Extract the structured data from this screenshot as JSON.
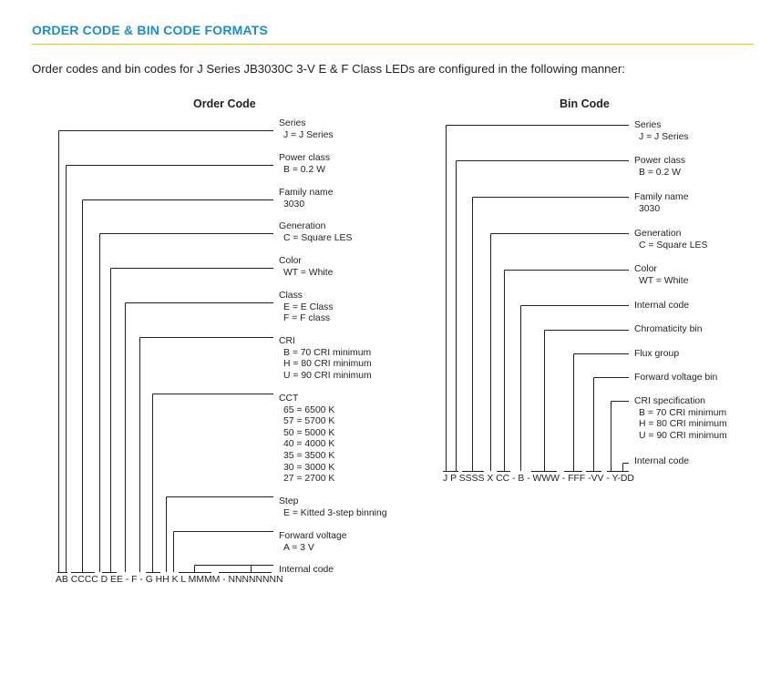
{
  "title": "ORDER CODE & BIN CODE FORMATS",
  "intro": "Order codes and bin codes for J Series JB3030C 3-V E & F Class LEDs are configured in the following manner:",
  "order": {
    "heading": "Order Code",
    "code": "AB CCCC D EE - F - G HH K L MMMM - NNNNNNNN",
    "labels": [
      {
        "main": "Series",
        "subs": [
          "J = J Series"
        ]
      },
      {
        "main": "Power class",
        "subs": [
          "B = 0.2 W"
        ]
      },
      {
        "main": "Family name",
        "subs": [
          "3030"
        ]
      },
      {
        "main": "Generation",
        "subs": [
          "C = Square LES"
        ]
      },
      {
        "main": "Color",
        "subs": [
          "WT = White"
        ]
      },
      {
        "main": "Class",
        "subs": [
          "E = E Class",
          "F = F class"
        ]
      },
      {
        "main": "CRI",
        "subs": [
          "B = 70 CRI minimum",
          "H = 80 CRI minimum",
          "U = 90 CRI minimum"
        ]
      },
      {
        "main": "CCT",
        "subs": [
          "65 = 6500 K",
          "57 = 5700 K",
          "50 = 5000 K",
          "40 = 4000 K",
          "35 = 3500 K",
          "30 = 3000 K",
          "27 = 2700 K"
        ]
      },
      {
        "main": "Step",
        "subs": [
          "E = Kitted 3-step binning"
        ]
      },
      {
        "main": "Forward voltage",
        "subs": [
          "A = 3 V"
        ]
      },
      {
        "main": "Internal code",
        "subs": []
      }
    ]
  },
  "bin": {
    "heading": "Bin Code",
    "code": "J P SSSS X CC - B - WWW - FFF -VV - Y-DD",
    "labels": [
      {
        "main": "Series",
        "subs": [
          "J = J Series"
        ]
      },
      {
        "main": "Power class",
        "subs": [
          "B = 0.2 W"
        ]
      },
      {
        "main": "Family name",
        "subs": [
          "3030"
        ]
      },
      {
        "main": "Generation",
        "subs": [
          "C = Square LES"
        ]
      },
      {
        "main": "Color",
        "subs": [
          "WT = White"
        ]
      },
      {
        "main": "Internal code",
        "subs": []
      },
      {
        "main": "Chromaticity bin",
        "subs": []
      },
      {
        "main": "Flux group",
        "subs": []
      },
      {
        "main": "Forward voltage bin",
        "subs": []
      },
      {
        "main": "CRI specification",
        "subs": [
          "B = 70 CRI minimum",
          "H = 80 CRI minimum",
          "U = 90 CRI minimum"
        ]
      },
      {
        "main": "Internal code",
        "subs": []
      }
    ]
  }
}
